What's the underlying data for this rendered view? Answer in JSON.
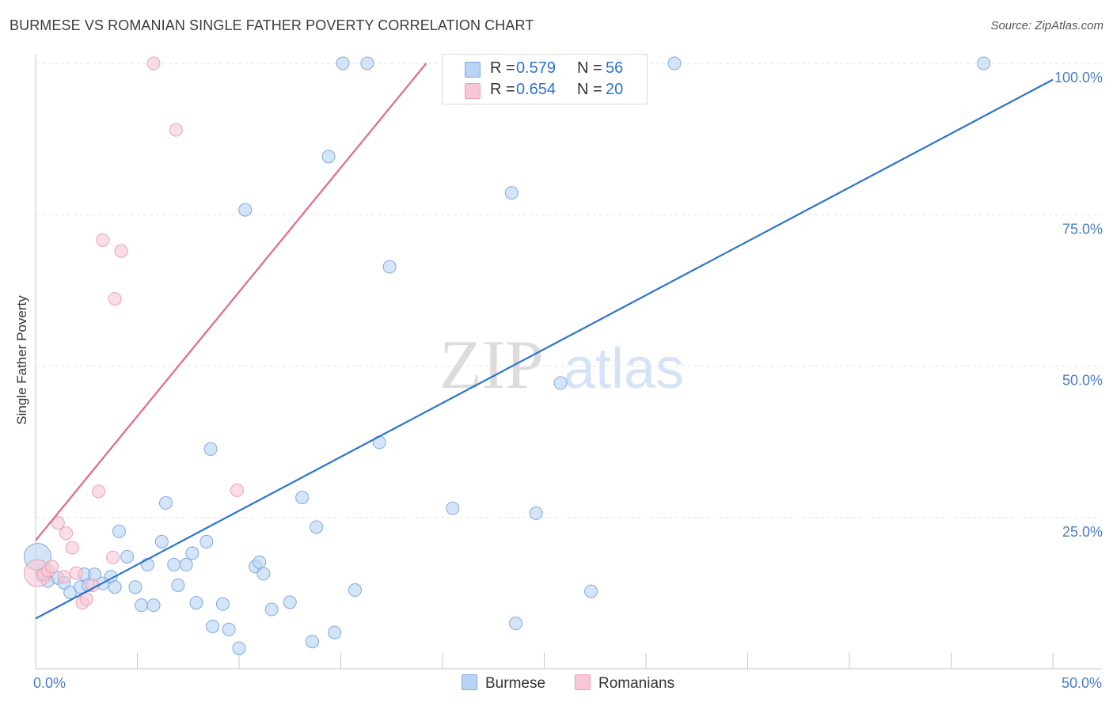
{
  "title": "BURMESE VS ROMANIAN SINGLE FATHER POVERTY CORRELATION CHART",
  "source": "Source: ZipAtlas.com",
  "watermark": {
    "zip": "ZIP",
    "atlas": "atlas"
  },
  "colors": {
    "burmese_fill": "#b9d3f3",
    "burmese_stroke": "#7fa9df",
    "burmese_line": "#2a74d0",
    "romanian_fill": "#f8c6d4",
    "romanian_stroke": "#eaa0b6",
    "romanian_line": "#e06890",
    "tick_label": "#4a7cc6",
    "grid": "#e3e3e3"
  },
  "legend": {
    "burmese": {
      "r_label": "R =",
      "r_value": "0.579",
      "n_label": "N =",
      "n_value": "56"
    },
    "romanian": {
      "r_label": "R =",
      "r_value": "0.654",
      "n_label": "N =",
      "n_value": "20"
    }
  },
  "chart_data": {
    "type": "scatter",
    "title": "BURMESE VS ROMANIAN SINGLE FATHER POVERTY CORRELATION CHART",
    "xlabel": "",
    "ylabel": "Single Father Poverty",
    "xlim": [
      0,
      50
    ],
    "ylim": [
      0,
      100
    ],
    "x_tick_labels": [
      {
        "value": 0,
        "label": "0.0%"
      },
      {
        "value": 50,
        "label": "50.0%"
      }
    ],
    "y_tick_labels": [
      {
        "value": 25,
        "label": "25.0%"
      },
      {
        "value": 50,
        "label": "50.0%"
      },
      {
        "value": 75,
        "label": "75.0%"
      },
      {
        "value": 100,
        "label": "100.0%"
      }
    ],
    "series": [
      {
        "name": "Burmese",
        "r": 0.579,
        "n": 56,
        "trend": {
          "x": [
            0,
            50
          ],
          "y": [
            8.3,
            97.3
          ]
        },
        "points": [
          {
            "x": 0.1,
            "y": 18.5,
            "big": true
          },
          {
            "x": 0.3,
            "y": 15.5
          },
          {
            "x": 0.6,
            "y": 14.5
          },
          {
            "x": 1.1,
            "y": 15.0
          },
          {
            "x": 1.4,
            "y": 14.2
          },
          {
            "x": 1.7,
            "y": 12.6
          },
          {
            "x": 2.2,
            "y": 13.5
          },
          {
            "x": 2.4,
            "y": 15.6
          },
          {
            "x": 2.6,
            "y": 13.8
          },
          {
            "x": 2.9,
            "y": 15.6
          },
          {
            "x": 3.3,
            "y": 14.1
          },
          {
            "x": 3.7,
            "y": 15.2
          },
          {
            "x": 3.9,
            "y": 13.5
          },
          {
            "x": 4.1,
            "y": 22.7
          },
          {
            "x": 4.5,
            "y": 18.5
          },
          {
            "x": 4.9,
            "y": 13.5
          },
          {
            "x": 5.2,
            "y": 10.5
          },
          {
            "x": 5.5,
            "y": 17.2
          },
          {
            "x": 5.8,
            "y": 10.5
          },
          {
            "x": 6.2,
            "y": 21.0
          },
          {
            "x": 6.4,
            "y": 27.4
          },
          {
            "x": 6.8,
            "y": 17.2
          },
          {
            "x": 7.0,
            "y": 13.8
          },
          {
            "x": 7.4,
            "y": 17.2
          },
          {
            "x": 7.7,
            "y": 19.1
          },
          {
            "x": 7.9,
            "y": 10.9
          },
          {
            "x": 8.4,
            "y": 21.0
          },
          {
            "x": 8.7,
            "y": 7.0
          },
          {
            "x": 8.6,
            "y": 36.3
          },
          {
            "x": 9.2,
            "y": 10.7
          },
          {
            "x": 9.5,
            "y": 6.5
          },
          {
            "x": 10.0,
            "y": 3.4
          },
          {
            "x": 10.3,
            "y": 75.8
          },
          {
            "x": 10.8,
            "y": 16.9
          },
          {
            "x": 11.0,
            "y": 17.6
          },
          {
            "x": 11.2,
            "y": 15.7
          },
          {
            "x": 11.6,
            "y": 9.8
          },
          {
            "x": 12.5,
            "y": 11.0
          },
          {
            "x": 13.1,
            "y": 28.3
          },
          {
            "x": 13.6,
            "y": 4.5
          },
          {
            "x": 13.8,
            "y": 23.4
          },
          {
            "x": 14.4,
            "y": 84.6
          },
          {
            "x": 14.7,
            "y": 6.0
          },
          {
            "x": 15.1,
            "y": 100.0
          },
          {
            "x": 15.7,
            "y": 13.0
          },
          {
            "x": 16.3,
            "y": 100.0
          },
          {
            "x": 16.9,
            "y": 37.4
          },
          {
            "x": 17.4,
            "y": 66.4
          },
          {
            "x": 20.5,
            "y": 26.5
          },
          {
            "x": 23.4,
            "y": 78.6
          },
          {
            "x": 23.6,
            "y": 7.5
          },
          {
            "x": 24.6,
            "y": 25.7
          },
          {
            "x": 25.8,
            "y": 47.2
          },
          {
            "x": 27.3,
            "y": 12.8
          },
          {
            "x": 31.4,
            "y": 100.0
          },
          {
            "x": 46.6,
            "y": 100.0
          }
        ]
      },
      {
        "name": "Romanians",
        "r": 0.654,
        "n": 20,
        "trend": {
          "x": [
            0,
            19.2
          ],
          "y": [
            21.2,
            100.0
          ]
        },
        "points": [
          {
            "x": 0.1,
            "y": 15.8,
            "big": true
          },
          {
            "x": 0.4,
            "y": 15.6
          },
          {
            "x": 0.6,
            "y": 16.2
          },
          {
            "x": 0.8,
            "y": 16.9
          },
          {
            "x": 1.1,
            "y": 24.1
          },
          {
            "x": 1.5,
            "y": 22.4
          },
          {
            "x": 1.8,
            "y": 20.0
          },
          {
            "x": 2.0,
            "y": 15.8
          },
          {
            "x": 2.3,
            "y": 10.9
          },
          {
            "x": 2.5,
            "y": 11.5
          },
          {
            "x": 2.8,
            "y": 13.8
          },
          {
            "x": 3.1,
            "y": 29.3
          },
          {
            "x": 3.3,
            "y": 70.8
          },
          {
            "x": 3.8,
            "y": 18.4
          },
          {
            "x": 3.9,
            "y": 61.1
          },
          {
            "x": 4.2,
            "y": 69.0
          },
          {
            "x": 5.8,
            "y": 100.0
          },
          {
            "x": 6.9,
            "y": 89.0
          },
          {
            "x": 9.9,
            "y": 29.5
          },
          {
            "x": 1.4,
            "y": 15.2
          }
        ]
      }
    ]
  },
  "bottom_legend": {
    "burmese": "Burmese",
    "romanians": "Romanians"
  }
}
